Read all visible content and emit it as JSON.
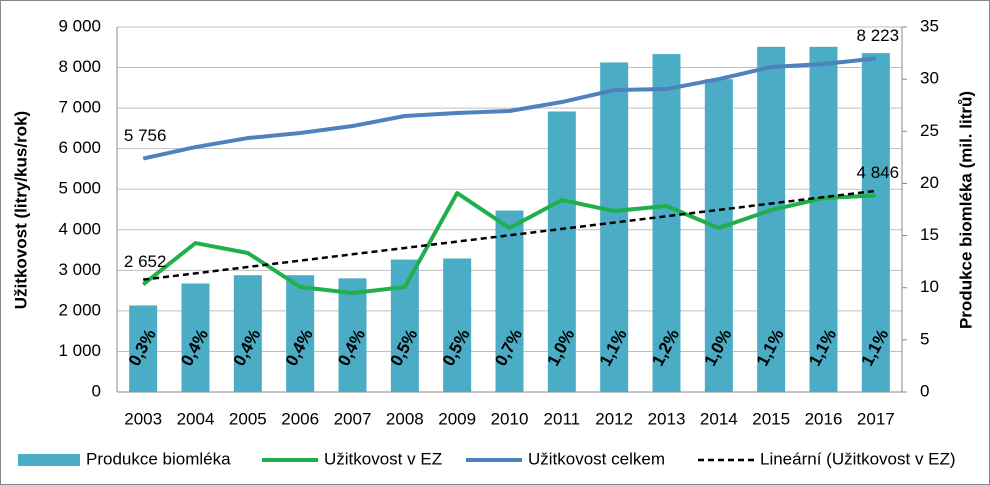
{
  "chart_data": {
    "type": "combo",
    "categories": [
      "2003",
      "2004",
      "2005",
      "2006",
      "2007",
      "2008",
      "2009",
      "2010",
      "2011",
      "2012",
      "2013",
      "2014",
      "2015",
      "2016",
      "2017"
    ],
    "ylabel": "Užitkovost (litry/kus/rok)",
    "y2label": "Produkce biomléka (mil. litrů)",
    "ylim": [
      0,
      9000
    ],
    "yticks": [
      0,
      {
        "value": 1000,
        "label": "1 000"
      },
      {
        "value": 2000,
        "label": "2 000"
      },
      {
        "value": 3000,
        "label": "3 000"
      },
      {
        "value": 4000,
        "label": "4 000"
      },
      {
        "value": 5000,
        "label": "5 000"
      },
      {
        "value": 6000,
        "label": "6 000"
      },
      {
        "value": 7000,
        "label": "7 000"
      },
      {
        "value": 8000,
        "label": "8 000"
      },
      {
        "value": 9000,
        "label": "9 000"
      }
    ],
    "y2lim": [
      0,
      35
    ],
    "y2ticks": [
      0,
      5,
      10,
      15,
      20,
      25,
      30,
      35
    ],
    "grid": true,
    "legend": "bottom",
    "series": [
      {
        "name": "Produkce biomléka",
        "type": "bar",
        "axis": "y2",
        "color": "#4bacc6",
        "values": [
          8.3,
          10.4,
          11.2,
          11.2,
          10.9,
          12.7,
          12.8,
          17.4,
          26.9,
          31.6,
          32.4,
          30.0,
          33.1,
          33.1,
          32.5
        ],
        "bar_labels": [
          "0,3%",
          "0,4%",
          "0,4%",
          "0,4%",
          "0,4%",
          "0,5%",
          "0,5%",
          "0,7%",
          "1,0%",
          "1,1%",
          "1,2%",
          "1,0%",
          "1,1%",
          "1,1%",
          "1,1%"
        ]
      },
      {
        "name": "Užitkovost v EZ",
        "type": "line",
        "color": "#1fb04c",
        "width": 4,
        "values": [
          2652,
          3673,
          3427,
          2589,
          2441,
          2589,
          4906,
          4043,
          4734,
          4462,
          4586,
          4043,
          4487,
          4783,
          4846
        ],
        "value_labels": [
          "2 652",
          null,
          null,
          null,
          null,
          null,
          null,
          null,
          null,
          null,
          null,
          null,
          null,
          null,
          "4 846"
        ]
      },
      {
        "name": "Užitkovost celkem",
        "type": "line",
        "color": "#4f81bd",
        "width": 4,
        "values": [
          5756,
          6040,
          6262,
          6386,
          6558,
          6805,
          6879,
          6928,
          7150,
          7446,
          7470,
          7717,
          8013,
          8087,
          8223
        ],
        "value_labels": [
          "5 756",
          null,
          null,
          null,
          null,
          null,
          null,
          null,
          null,
          null,
          null,
          null,
          null,
          null,
          "8 223"
        ]
      },
      {
        "name": "Lineární (Užitkovost v EZ)",
        "type": "line",
        "color": "#000000",
        "width": 2.5,
        "dashed": true,
        "values": [
          2770,
          2926,
          3083,
          3239,
          3396,
          3552,
          3709,
          3865,
          4021,
          4178,
          4334,
          4491,
          4647,
          4804,
          4960
        ]
      }
    ]
  }
}
